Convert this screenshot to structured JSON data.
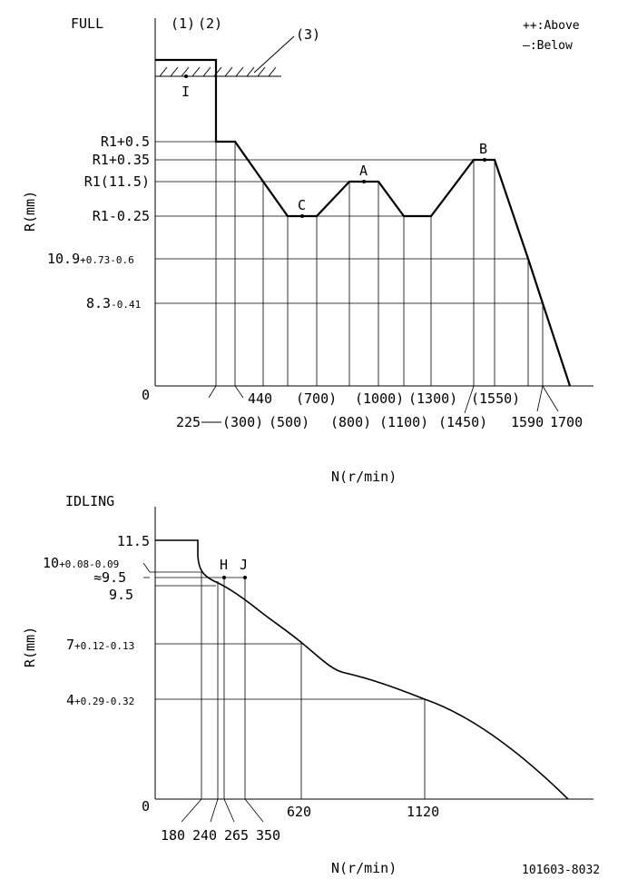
{
  "full": {
    "title": "FULL",
    "legend_above": "++:Above",
    "legend_below": "—:Below",
    "notes": {
      "n1": "(1)",
      "n2": "(2)",
      "n3": "(3)"
    },
    "marker_I": "I",
    "y_axis_label": "R(mm)",
    "x_axis_label": "N(r/min)",
    "y_labels": {
      "r1_05": "R1+0.5",
      "r1_035": "R1+0.35",
      "r1": "R1(11.5)",
      "r1_m025": "R1-0.25",
      "v109_main": "10.9",
      "v109_tol": "+0.73-0.6",
      "v83_main": "8.3",
      "v83_tol": "-0.41",
      "zero": "0"
    },
    "x_labels": {
      "n225": "225",
      "n300": "(300)",
      "n440": "440",
      "n500": "(500)",
      "n700": "(700)",
      "n800": "(800)",
      "n1000": "(1000)",
      "n1100": "(1100)",
      "n1300": "(1300)",
      "n1450": "(1450)",
      "n1550": "(1550)",
      "n1590": "1590",
      "n1700": "1700"
    },
    "point_labels": {
      "A": "A",
      "B": "B",
      "C": "C"
    }
  },
  "idling": {
    "title": "IDLING",
    "y_axis_label": "R(mm)",
    "x_axis_label": "N(r/min)",
    "y_labels": {
      "v115": "11.5",
      "v10_main": "10",
      "v10_tol": "+0.08-0.09",
      "approx95": "≈9.5",
      "v95": "9.5",
      "v7_main": "7",
      "v7_tol": "+0.12-0.13",
      "v4_main": "4",
      "v4_tol": "+0.29-0.32",
      "zero": "0"
    },
    "x_labels": {
      "n180": "180",
      "n240": "240",
      "n265": "265",
      "n350": "350",
      "n620": "620",
      "n1120": "1120"
    },
    "point_labels": {
      "H": "H",
      "J": "J"
    }
  },
  "doc_number": "101603-8032"
}
